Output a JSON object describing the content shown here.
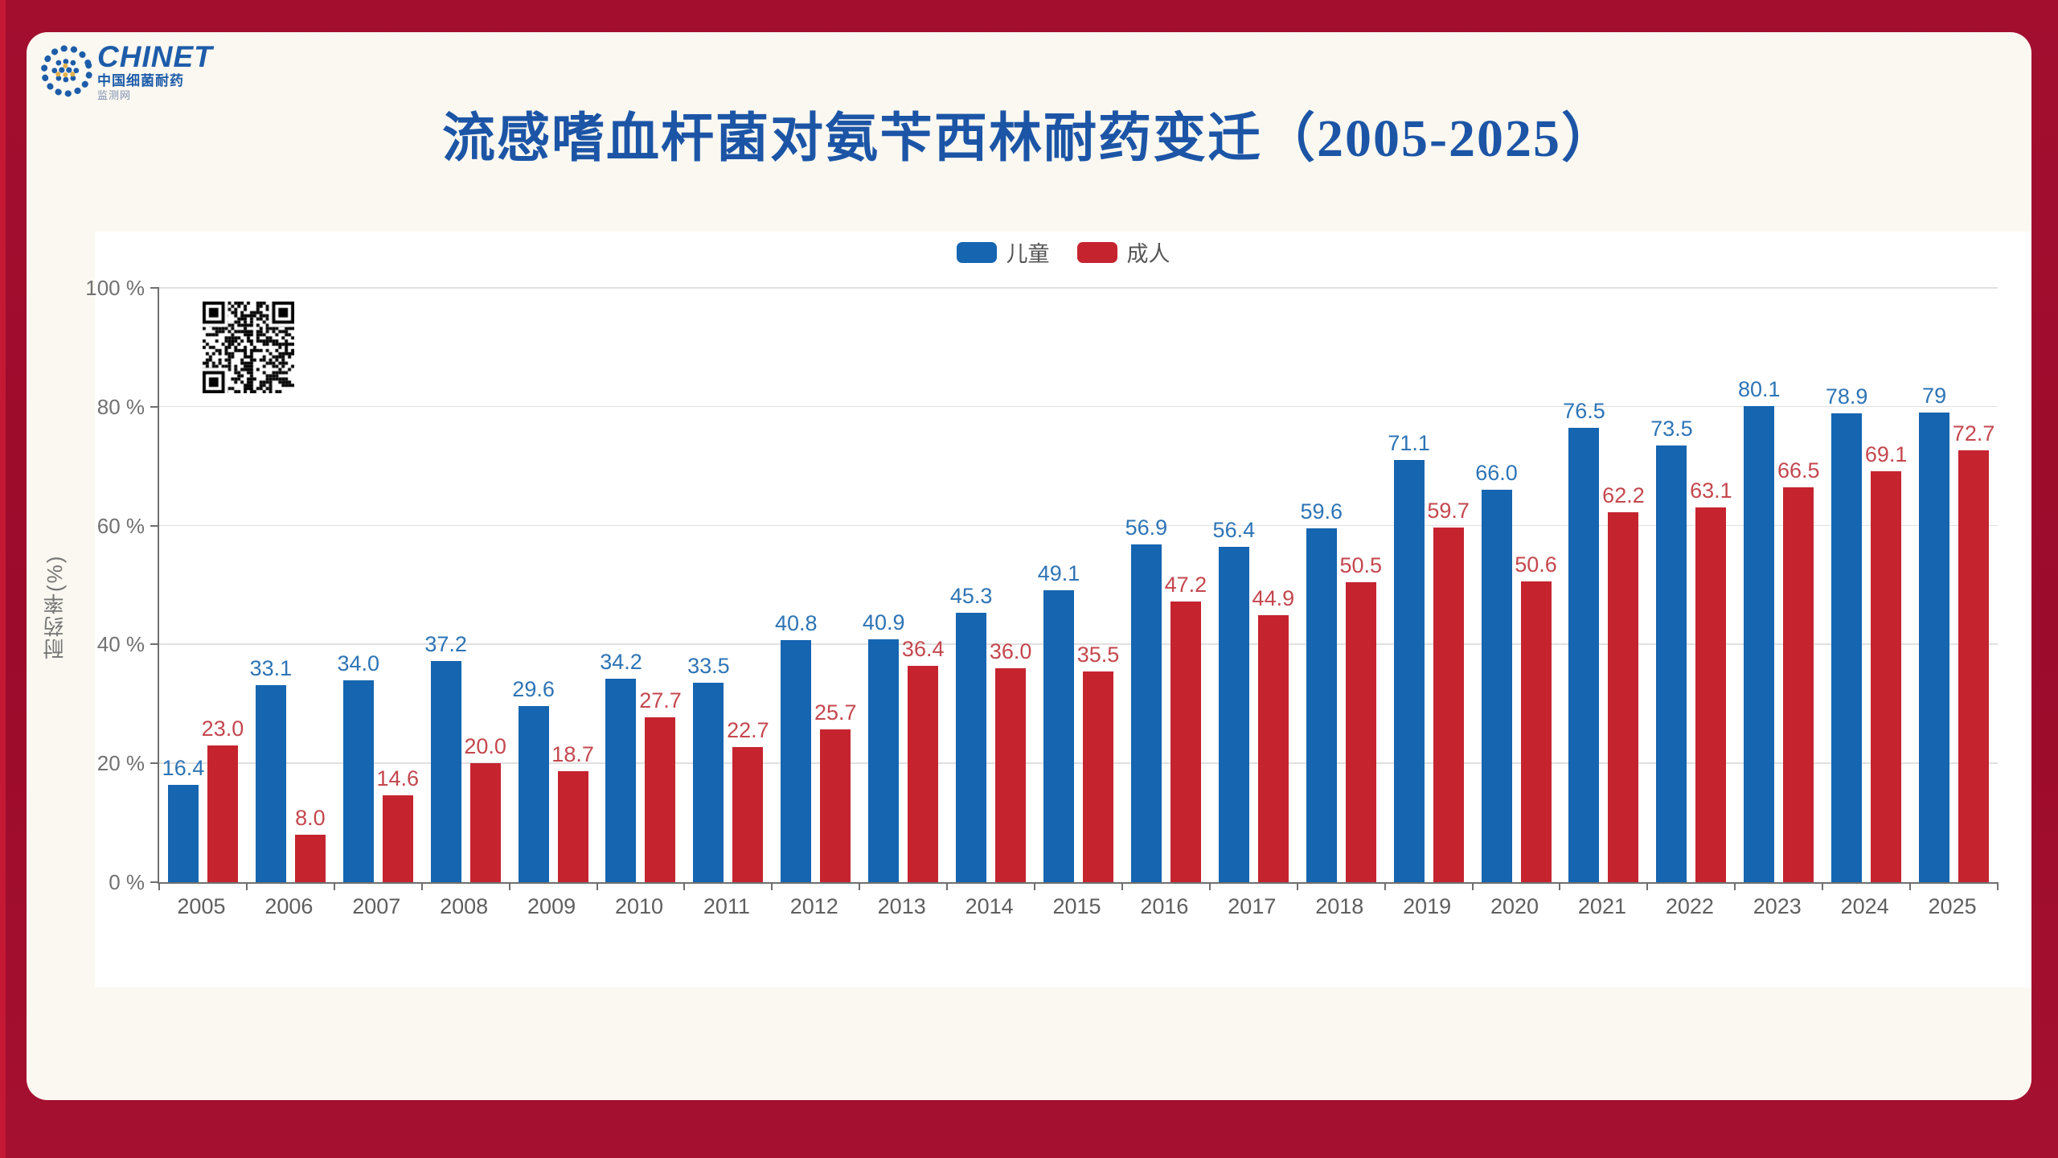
{
  "logo": {
    "brand": "CHINET",
    "line1": "中国细菌耐药",
    "line2": "监测网"
  },
  "title": {
    "text": "流感嗜血杆菌对氨苄西林耐药变迁（2005-2025）",
    "color": "#1C55A6"
  },
  "chart_data": {
    "type": "bar",
    "title": "流感嗜血杆菌对氨苄西林耐药变迁（2005-2025）",
    "categories": [
      "2005",
      "2006",
      "2007",
      "2008",
      "2009",
      "2010",
      "2011",
      "2012",
      "2013",
      "2014",
      "2015",
      "2016",
      "2017",
      "2018",
      "2019",
      "2020",
      "2021",
      "2022",
      "2023",
      "2024",
      "2025"
    ],
    "series": [
      {
        "key": "children",
        "name": "儿童",
        "color": "#1565B0",
        "label_color": "#2E74B5",
        "values": [
          16.4,
          33.1,
          34.0,
          37.2,
          29.6,
          34.2,
          33.5,
          40.8,
          40.9,
          45.3,
          49.1,
          56.9,
          56.4,
          59.6,
          71.1,
          66.0,
          76.5,
          73.5,
          80.1,
          78.9,
          79
        ],
        "labels": [
          "16.4",
          "33.1",
          "34.0",
          "37.2",
          "29.6",
          "34.2",
          "33.5",
          "40.8",
          "40.9",
          "45.3",
          "49.1",
          "56.9",
          "56.4",
          "59.6",
          "71.1",
          "66.0",
          "76.5",
          "73.5",
          "80.1",
          "78.9",
          "79"
        ]
      },
      {
        "key": "adults",
        "name": "成人",
        "color": "#C5242F",
        "label_color": "#C4474E",
        "values": [
          23.0,
          8.0,
          14.6,
          20.0,
          18.7,
          27.7,
          22.7,
          25.7,
          36.4,
          36.0,
          35.5,
          47.2,
          44.9,
          50.5,
          59.7,
          50.6,
          62.2,
          63.1,
          66.5,
          69.1,
          72.7
        ],
        "labels": [
          "23.0",
          "8.0",
          "14.6",
          "20.0",
          "18.7",
          "27.7",
          "22.7",
          "25.7",
          "36.4",
          "36.0",
          "35.5",
          "47.2",
          "44.9",
          "50.5",
          "59.7",
          "50.6",
          "62.2",
          "63.1",
          "66.5",
          "69.1",
          "72.7"
        ]
      }
    ],
    "xlabel": "",
    "ylabel": "耐药率(%)",
    "yticks": [
      "100 %",
      "80 %",
      "60 %",
      "40 %",
      "20 %",
      "0 %"
    ],
    "ylim": [
      0,
      100
    ],
    "grid": true,
    "legend_position": "top-center"
  }
}
